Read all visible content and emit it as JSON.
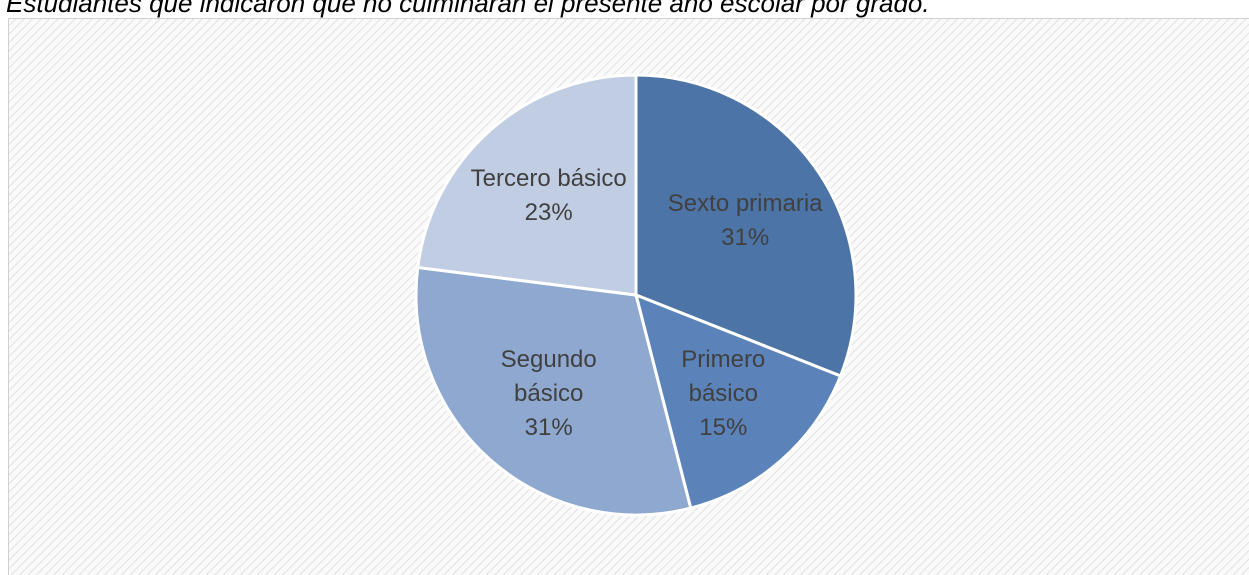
{
  "chart_data": {
    "type": "pie",
    "title": "Estudiantes que indicaron que no culminarán el presente año escolar por grado.",
    "categories": [
      "Sexto primaria",
      "Primero básico",
      "Segundo básico",
      "Tercero básico"
    ],
    "values": [
      31,
      15,
      31,
      23
    ],
    "value_labels": [
      "31%",
      "15%",
      "31%",
      "23%"
    ],
    "colors": [
      "#4d74a6",
      "#5b83ba",
      "#8fa8d0",
      "#c1cde3"
    ]
  }
}
